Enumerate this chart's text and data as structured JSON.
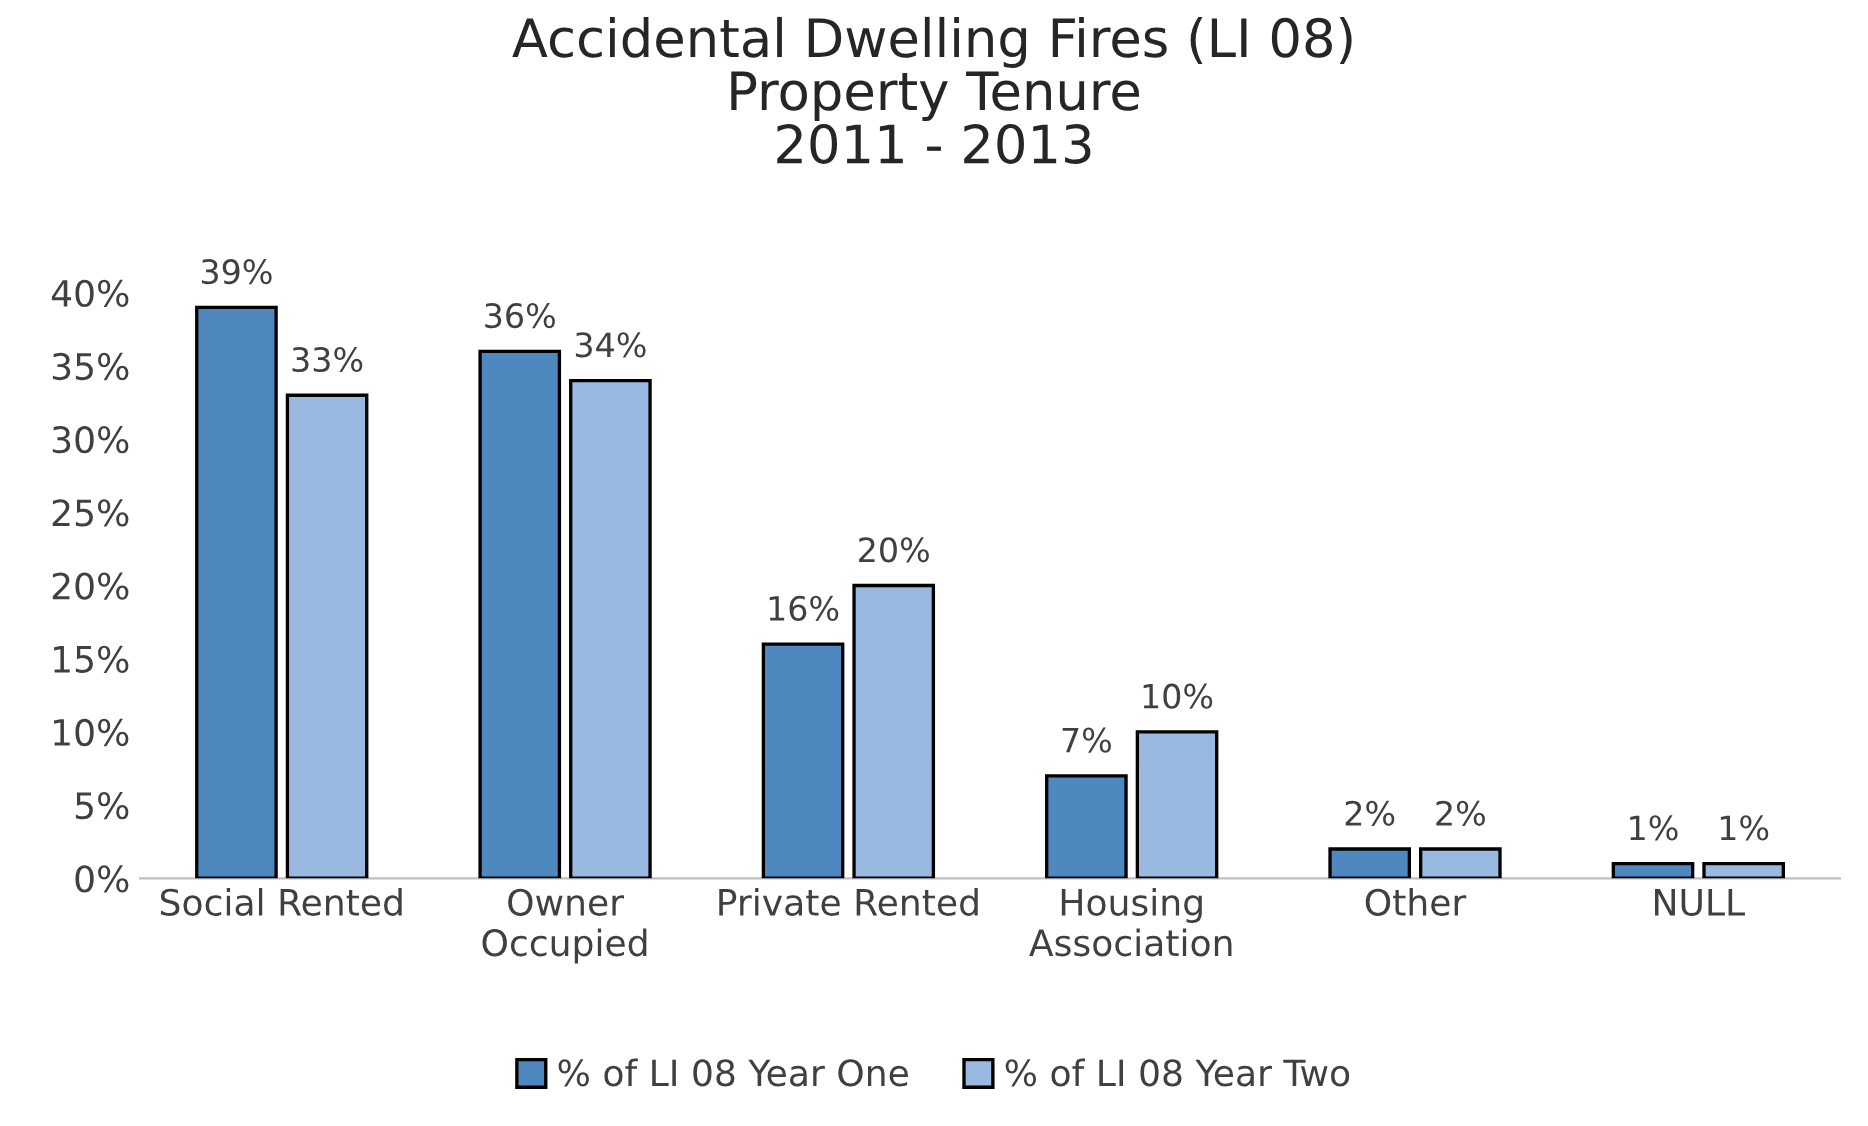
{
  "chart_data": {
    "type": "bar",
    "title": "Accidental Dwelling Fires (LI 08)\nProperty Tenure\n2011 - 2013",
    "categories": [
      "Social Rented",
      "Owner\nOccupied",
      "Private Rented",
      "Housing\nAssociation",
      "Other",
      "NULL"
    ],
    "series": [
      {
        "name": "% of LI 08 Year One",
        "color": "#4f88bf",
        "values": [
          39,
          36,
          16,
          7,
          2,
          1
        ],
        "value_labels": [
          "39%",
          "36%",
          "16%",
          "7%",
          "2%",
          "1%"
        ]
      },
      {
        "name": "% of LI 08 Year Two",
        "color": "#9ab9e0",
        "values": [
          33,
          34,
          20,
          10,
          2,
          1
        ],
        "value_labels": [
          "33%",
          "34%",
          "20%",
          "10%",
          "2%",
          "1%"
        ]
      }
    ],
    "ylim": [
      0,
      40
    ],
    "yticks": [
      {
        "value": 0,
        "label": "0%"
      },
      {
        "value": 5,
        "label": "5%"
      },
      {
        "value": 10,
        "label": "10%"
      },
      {
        "value": 15,
        "label": "15%"
      },
      {
        "value": 20,
        "label": "20%"
      },
      {
        "value": 25,
        "label": "25%"
      },
      {
        "value": 30,
        "label": "30%"
      },
      {
        "value": 35,
        "label": "35%"
      },
      {
        "value": 40,
        "label": "40%"
      }
    ],
    "grid": false,
    "legend": "bottom"
  }
}
